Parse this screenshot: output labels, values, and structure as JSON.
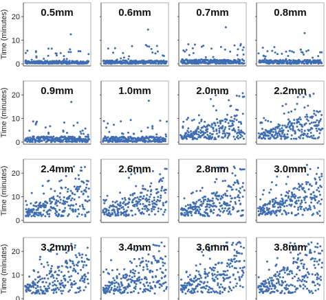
{
  "ylabel": "Time (minutes)",
  "yticks": [
    "0",
    "10",
    "20"
  ],
  "colors": {
    "points": "#3f6db3",
    "frame": "#9a9a9a",
    "axis": "#444444"
  },
  "chart_data": {
    "type": "scatter",
    "layout": "4x4 small multiples",
    "ylim": [
      0,
      25
    ],
    "ylabel": "Time (minutes)",
    "points_per_panel": 240,
    "x_unit": "event order (unlabeled)",
    "panels": [
      {
        "title": "0.5mm",
        "median_y": 0.8,
        "max_y": 12.5
      },
      {
        "title": "0.6mm",
        "median_y": 0.9,
        "max_y": 14.5
      },
      {
        "title": "0.7mm",
        "median_y": 1.2,
        "max_y": 15.5
      },
      {
        "title": "0.8mm",
        "median_y": 1.0,
        "max_y": 13.0
      },
      {
        "title": "0.9mm",
        "median_y": 1.5,
        "max_y": 17.0
      },
      {
        "title": "1.0mm",
        "median_y": 1.5,
        "max_y": 17.5
      },
      {
        "title": "2.0mm",
        "median_y": 4.0,
        "max_y": 21.0
      },
      {
        "title": "2.2mm",
        "median_y": 4.5,
        "max_y": 21.0
      },
      {
        "title": "2.4mm",
        "median_y": 5.5,
        "max_y": 23.0
      },
      {
        "title": "2.6mm",
        "median_y": 6.0,
        "max_y": 23.0
      },
      {
        "title": "2.8mm",
        "median_y": 6.0,
        "max_y": 23.0
      },
      {
        "title": "3.0mm",
        "median_y": 6.5,
        "max_y": 23.5
      },
      {
        "title": "3.2mm",
        "median_y": 7.0,
        "max_y": 24.0
      },
      {
        "title": "3.4mm",
        "median_y": 7.0,
        "max_y": 24.0
      },
      {
        "title": "3.6mm",
        "median_y": 7.0,
        "max_y": 24.0
      },
      {
        "title": "3.8mm",
        "median_y": 7.5,
        "max_y": 24.0
      }
    ]
  }
}
